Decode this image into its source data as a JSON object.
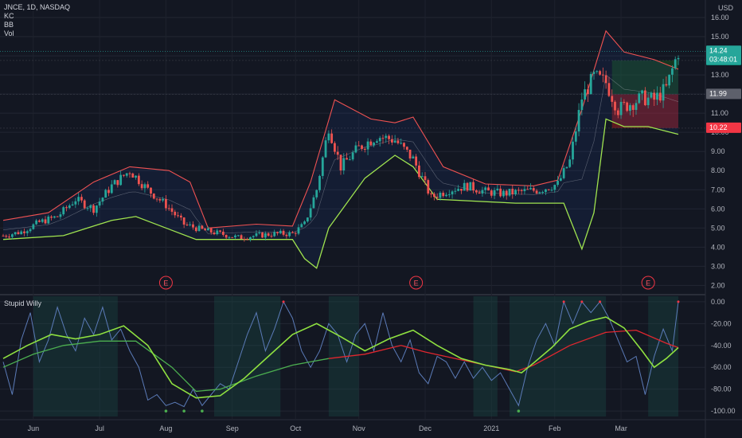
{
  "header": {
    "symbol_line": "JNCE, 1D, NASDAQ",
    "indicators": [
      "KC",
      "BB",
      "Vol"
    ],
    "currency": "USD"
  },
  "lower_pane": {
    "title": "Stupid Willy"
  },
  "price_tags": {
    "last": {
      "value": "14.24",
      "countdown": "03:48:01",
      "color": "#26a69a"
    },
    "target": {
      "value": "13.76",
      "color": "#089981"
    },
    "entry": {
      "value": "11.99",
      "color": "#5d606b"
    },
    "stop": {
      "value": "10.22",
      "color": "#f23645"
    }
  },
  "earnings_marker": "E",
  "colors": {
    "background": "#131722",
    "candle_up": "#26a69a",
    "candle_down": "#ef5350",
    "bb_upper": "#f05252",
    "bb_lower": "#9fe34f",
    "willy_line": "#5b7bb8",
    "willy_fast": "#8fe140",
    "willy_slow_up": "#4caf50",
    "willy_slow_down": "#e0272f",
    "zone_profit": "#1b5e20",
    "zone_loss": "#b71c1c"
  },
  "chart_data": [
    {
      "type": "candlestick",
      "x_axis_labels": [
        "Jun",
        "Jul",
        "Aug",
        "Sep",
        "Oct",
        "Nov",
        "Dec",
        "2021",
        "Feb",
        "Mar"
      ],
      "y_ticks": [
        "16.00",
        "15.00",
        "14.00",
        "13.00",
        "12.00",
        "11.00",
        "10.00",
        "9.00",
        "8.00",
        "7.00",
        "6.00",
        "5.00",
        "4.00",
        "3.00",
        "2.00"
      ],
      "ylim": [
        1.6,
        16.5
      ],
      "close_path": [
        [
          0,
          4.6
        ],
        [
          6,
          4.8
        ],
        [
          12,
          5.3
        ],
        [
          18,
          5.6
        ],
        [
          24,
          6.5
        ],
        [
          30,
          6.0
        ],
        [
          36,
          7.2
        ],
        [
          42,
          8.0
        ],
        [
          48,
          7.0
        ],
        [
          54,
          6.2
        ],
        [
          60,
          5.2
        ],
        [
          66,
          4.9
        ],
        [
          72,
          4.7
        ],
        [
          78,
          4.5
        ],
        [
          84,
          4.6
        ],
        [
          90,
          4.7
        ],
        [
          96,
          4.7
        ],
        [
          100,
          5.2
        ],
        [
          104,
          7.0
        ],
        [
          108,
          10.3
        ],
        [
          112,
          8.2
        ],
        [
          118,
          9.2
        ],
        [
          124,
          9.8
        ],
        [
          130,
          9.6
        ],
        [
          136,
          8.6
        ],
        [
          142,
          6.6
        ],
        [
          148,
          7.0
        ],
        [
          154,
          7.2
        ],
        [
          160,
          6.9
        ],
        [
          166,
          6.8
        ],
        [
          172,
          6.9
        ],
        [
          178,
          7.0
        ],
        [
          184,
          7.3
        ],
        [
          188,
          8.5
        ],
        [
          192,
          11.8
        ],
        [
          196,
          12.9
        ],
        [
          200,
          12.6
        ],
        [
          204,
          11.2
        ],
        [
          208,
          11.5
        ],
        [
          212,
          11.8
        ],
        [
          216,
          11.7
        ],
        [
          220,
          12.3
        ],
        [
          224,
          14.24
        ]
      ],
      "bollinger_upper_path": [
        [
          0,
          5.4
        ],
        [
          15,
          5.8
        ],
        [
          30,
          7.4
        ],
        [
          42,
          8.2
        ],
        [
          55,
          8.0
        ],
        [
          62,
          7.4
        ],
        [
          68,
          5.0
        ],
        [
          84,
          5.2
        ],
        [
          96,
          5.1
        ],
        [
          102,
          7.4
        ],
        [
          110,
          11.7
        ],
        [
          122,
          10.7
        ],
        [
          130,
          10.5
        ],
        [
          136,
          10.8
        ],
        [
          146,
          8.2
        ],
        [
          160,
          7.3
        ],
        [
          176,
          7.2
        ],
        [
          184,
          7.5
        ],
        [
          192,
          11.2
        ],
        [
          200,
          15.3
        ],
        [
          206,
          14.2
        ],
        [
          216,
          13.8
        ],
        [
          224,
          13.3
        ]
      ],
      "bollinger_lower_path": [
        [
          0,
          4.4
        ],
        [
          20,
          4.6
        ],
        [
          28,
          5.0
        ],
        [
          36,
          5.4
        ],
        [
          44,
          5.6
        ],
        [
          54,
          5.0
        ],
        [
          64,
          4.4
        ],
        [
          96,
          4.4
        ],
        [
          100,
          3.4
        ],
        [
          104,
          2.9
        ],
        [
          108,
          5.0
        ],
        [
          120,
          7.6
        ],
        [
          130,
          8.8
        ],
        [
          136,
          8.2
        ],
        [
          144,
          6.5
        ],
        [
          170,
          6.3
        ],
        [
          186,
          6.3
        ],
        [
          190,
          4.7
        ],
        [
          192,
          3.9
        ],
        [
          196,
          5.8
        ],
        [
          200,
          10.7
        ],
        [
          206,
          10.3
        ],
        [
          214,
          10.3
        ],
        [
          224,
          9.9
        ]
      ],
      "earnings_bars": [
        54,
        137,
        214
      ],
      "trade_zone": {
        "from_bar": 202,
        "to_bar": 224,
        "entry": 11.99,
        "target": 13.76,
        "stop": 10.22
      }
    },
    {
      "type": "line",
      "title": "Stupid Willy",
      "y_ticks": [
        "0.00",
        "-20.00",
        "-40.00",
        "-60.00",
        "-80.00",
        "-100.00"
      ],
      "ylim": [
        -105,
        5
      ],
      "willy_path": [
        [
          0,
          -55
        ],
        [
          3,
          -85
        ],
        [
          6,
          -35
        ],
        [
          9,
          -10
        ],
        [
          12,
          -55
        ],
        [
          15,
          -35
        ],
        [
          18,
          -5
        ],
        [
          21,
          -30
        ],
        [
          24,
          -45
        ],
        [
          27,
          -15
        ],
        [
          30,
          -30
        ],
        [
          33,
          -5
        ],
        [
          36,
          -35
        ],
        [
          39,
          -25
        ],
        [
          42,
          -45
        ],
        [
          45,
          -60
        ],
        [
          48,
          -90
        ],
        [
          51,
          -85
        ],
        [
          54,
          -95
        ],
        [
          57,
          -92
        ],
        [
          60,
          -96
        ],
        [
          63,
          -80
        ],
        [
          66,
          -95
        ],
        [
          69,
          -85
        ],
        [
          72,
          -75
        ],
        [
          75,
          -80
        ],
        [
          78,
          -55
        ],
        [
          81,
          -30
        ],
        [
          84,
          -10
        ],
        [
          87,
          -45
        ],
        [
          90,
          -25
        ],
        [
          93,
          0
        ],
        [
          96,
          -15
        ],
        [
          99,
          -45
        ],
        [
          102,
          -60
        ],
        [
          105,
          -45
        ],
        [
          108,
          -20
        ],
        [
          111,
          -30
        ],
        [
          114,
          -55
        ],
        [
          117,
          -30
        ],
        [
          120,
          -20
        ],
        [
          123,
          -45
        ],
        [
          126,
          -10
        ],
        [
          129,
          -40
        ],
        [
          132,
          -55
        ],
        [
          135,
          -35
        ],
        [
          138,
          -65
        ],
        [
          141,
          -75
        ],
        [
          144,
          -50
        ],
        [
          147,
          -55
        ],
        [
          150,
          -70
        ],
        [
          153,
          -55
        ],
        [
          156,
          -70
        ],
        [
          159,
          -60
        ],
        [
          162,
          -72
        ],
        [
          165,
          -65
        ],
        [
          168,
          -80
        ],
        [
          171,
          -95
        ],
        [
          174,
          -60
        ],
        [
          177,
          -35
        ],
        [
          180,
          -20
        ],
        [
          183,
          -40
        ],
        [
          186,
          0
        ],
        [
          189,
          -20
        ],
        [
          192,
          0
        ],
        [
          195,
          -10
        ],
        [
          198,
          0
        ],
        [
          201,
          -15
        ],
        [
          204,
          -35
        ],
        [
          207,
          -55
        ],
        [
          210,
          -50
        ],
        [
          213,
          -85
        ],
        [
          216,
          -50
        ],
        [
          219,
          -25
        ],
        [
          222,
          -45
        ],
        [
          224,
          0
        ]
      ],
      "fast_path": [
        [
          0,
          -52
        ],
        [
          8,
          -40
        ],
        [
          16,
          -30
        ],
        [
          24,
          -34
        ],
        [
          32,
          -30
        ],
        [
          40,
          -22
        ],
        [
          48,
          -40
        ],
        [
          56,
          -75
        ],
        [
          64,
          -88
        ],
        [
          72,
          -86
        ],
        [
          80,
          -70
        ],
        [
          88,
          -50
        ],
        [
          96,
          -30
        ],
        [
          104,
          -20
        ],
        [
          112,
          -32
        ],
        [
          120,
          -45
        ],
        [
          128,
          -34
        ],
        [
          136,
          -26
        ],
        [
          144,
          -40
        ],
        [
          152,
          -52
        ],
        [
          160,
          -58
        ],
        [
          168,
          -62
        ],
        [
          172,
          -65
        ],
        [
          176,
          -56
        ],
        [
          182,
          -42
        ],
        [
          188,
          -25
        ],
        [
          194,
          -18
        ],
        [
          200,
          -14
        ],
        [
          206,
          -24
        ],
        [
          212,
          -45
        ],
        [
          216,
          -60
        ],
        [
          220,
          -52
        ],
        [
          224,
          -42
        ]
      ],
      "slow_path": [
        [
          0,
          -60
        ],
        [
          10,
          -48
        ],
        [
          20,
          -40
        ],
        [
          32,
          -36
        ],
        [
          44,
          -36
        ],
        [
          56,
          -60
        ],
        [
          64,
          -82
        ],
        [
          72,
          -80
        ],
        [
          84,
          -68
        ],
        [
          96,
          -58
        ],
        [
          108,
          -52
        ],
        [
          120,
          -48
        ],
        [
          132,
          -40
        ],
        [
          140,
          -46
        ],
        [
          150,
          -52
        ],
        [
          160,
          -58
        ],
        [
          170,
          -64
        ],
        [
          176,
          -58
        ],
        [
          188,
          -40
        ],
        [
          200,
          -28
        ],
        [
          210,
          -26
        ],
        [
          220,
          -38
        ],
        [
          224,
          -42
        ]
      ],
      "slow_path_down_from_bar": 104,
      "shade_ranges": [
        [
          10,
          38
        ],
        [
          70,
          92
        ],
        [
          108,
          118
        ],
        [
          156,
          164
        ],
        [
          168,
          200
        ],
        [
          214,
          224
        ]
      ]
    }
  ]
}
